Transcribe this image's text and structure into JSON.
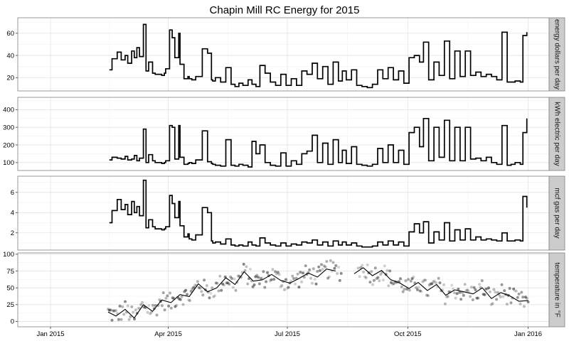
{
  "chart_data": {
    "type": "line",
    "title": "Chapin Mill RC Energy for 2015",
    "xlabel": "",
    "ylabel": "",
    "x_axis": {
      "ticks": [
        "2015-01-01",
        "2015-04-01",
        "2015-07-01",
        "2015-10-01",
        "2016-01-01"
      ],
      "tick_labels": [
        "Jan 2015",
        "Apr 2015",
        "Jul 2015",
        "Oct 2015",
        "Jan 2016"
      ],
      "range": [
        "2014-12-07",
        "2016-01-17"
      ]
    },
    "grid": true,
    "panels": [
      {
        "strip_label": "energy dollars per day",
        "type": "step",
        "ylim": [
          8,
          74
        ],
        "yticks": [
          20,
          40,
          60
        ],
        "series": [
          {
            "x": [
              "2015-02-15",
              "2015-02-17",
              "2015-02-21",
              "2015-02-24",
              "2015-02-27",
              "2015-03-01",
              "2015-03-04",
              "2015-03-06",
              "2015-03-08",
              "2015-03-10",
              "2015-03-13",
              "2015-03-15",
              "2015-03-17",
              "2015-03-20",
              "2015-03-22",
              "2015-03-27",
              "2015-03-29",
              "2015-03-30",
              "2015-04-02",
              "2015-04-04",
              "2015-04-06",
              "2015-04-09",
              "2015-04-10",
              "2015-04-13",
              "2015-04-16",
              "2015-04-17",
              "2015-04-19",
              "2015-04-22",
              "2015-04-27",
              "2015-05-01",
              "2015-05-04",
              "2015-05-05",
              "2015-05-07",
              "2015-05-11",
              "2015-05-15",
              "2015-05-19",
              "2015-05-22",
              "2015-05-25",
              "2015-05-28",
              "2015-06-01",
              "2015-06-04",
              "2015-06-07",
              "2015-06-10",
              "2015-06-14",
              "2015-06-18",
              "2015-06-22",
              "2015-06-26",
              "2015-06-30",
              "2015-07-04",
              "2015-07-08",
              "2015-07-12",
              "2015-07-16",
              "2015-07-20",
              "2015-07-24",
              "2015-07-28",
              "2015-08-01",
              "2015-08-05",
              "2015-08-09",
              "2015-08-12",
              "2015-08-15",
              "2015-08-19",
              "2015-08-23",
              "2015-08-27",
              "2015-08-31",
              "2015-09-04",
              "2015-09-08",
              "2015-09-12",
              "2015-09-16",
              "2015-09-20",
              "2015-09-24",
              "2015-09-28",
              "2015-10-02",
              "2015-10-06",
              "2015-10-10",
              "2015-10-13",
              "2015-10-17",
              "2015-10-21",
              "2015-10-25",
              "2015-10-29",
              "2015-11-02",
              "2015-11-06",
              "2015-11-10",
              "2015-11-14",
              "2015-11-18",
              "2015-11-22",
              "2015-11-26",
              "2015-11-30",
              "2015-12-04",
              "2015-12-08",
              "2015-12-12",
              "2015-12-16",
              "2015-12-19",
              "2015-12-22",
              "2015-12-26",
              "2015-12-28",
              "2015-12-31"
            ],
            "y": [
              27,
              37,
              43,
              36,
              40,
              33,
              44,
              38,
              47,
              39,
              68,
              26,
              34,
              24,
              23,
              22,
              24,
              28,
              63,
              56,
              38,
              60,
              32,
              19,
              21,
              19,
              18,
              21,
              46,
              42,
              18,
              17,
              20,
              16,
              29,
              14,
              12,
              15,
              13,
              18,
              14,
              12,
              31,
              24,
              16,
              13,
              23,
              13,
              19,
              13,
              26,
              23,
              33,
              19,
              30,
              14,
              34,
              17,
              26,
              18,
              27,
              13,
              12,
              11,
              14,
              27,
              19,
              29,
              18,
              26,
              15,
              38,
              40,
              34,
              52,
              18,
              34,
              22,
              53,
              19,
              44,
              21,
              44,
              22,
              25,
              21,
              23,
              21,
              18,
              61,
              16,
              16,
              17,
              16,
              58,
              61
            ]
          }
        ]
      },
      {
        "strip_label": "kWh electric per day",
        "type": "step",
        "ylim": [
          55,
          470
        ],
        "yticks": [
          100,
          200,
          300,
          400
        ],
        "series": [
          {
            "x": [
              "2015-02-15",
              "2015-02-17",
              "2015-02-21",
              "2015-02-24",
              "2015-02-27",
              "2015-03-01",
              "2015-03-04",
              "2015-03-06",
              "2015-03-08",
              "2015-03-10",
              "2015-03-13",
              "2015-03-15",
              "2015-03-17",
              "2015-03-20",
              "2015-03-22",
              "2015-03-27",
              "2015-03-29",
              "2015-03-30",
              "2015-04-02",
              "2015-04-04",
              "2015-04-06",
              "2015-04-09",
              "2015-04-10",
              "2015-04-13",
              "2015-04-16",
              "2015-04-17",
              "2015-04-19",
              "2015-04-22",
              "2015-04-27",
              "2015-05-01",
              "2015-05-04",
              "2015-05-05",
              "2015-05-07",
              "2015-05-11",
              "2015-05-15",
              "2015-05-19",
              "2015-05-22",
              "2015-05-25",
              "2015-05-28",
              "2015-06-01",
              "2015-06-04",
              "2015-06-07",
              "2015-06-10",
              "2015-06-14",
              "2015-06-18",
              "2015-06-22",
              "2015-06-26",
              "2015-06-30",
              "2015-07-04",
              "2015-07-08",
              "2015-07-12",
              "2015-07-16",
              "2015-07-20",
              "2015-07-24",
              "2015-07-28",
              "2015-08-01",
              "2015-08-05",
              "2015-08-09",
              "2015-08-12",
              "2015-08-15",
              "2015-08-19",
              "2015-08-23",
              "2015-08-27",
              "2015-08-31",
              "2015-09-04",
              "2015-09-08",
              "2015-09-12",
              "2015-09-16",
              "2015-09-20",
              "2015-09-24",
              "2015-09-28",
              "2015-10-02",
              "2015-10-06",
              "2015-10-10",
              "2015-10-13",
              "2015-10-17",
              "2015-10-21",
              "2015-10-25",
              "2015-10-29",
              "2015-11-02",
              "2015-11-06",
              "2015-11-10",
              "2015-11-14",
              "2015-11-18",
              "2015-11-22",
              "2015-11-26",
              "2015-11-30",
              "2015-12-04",
              "2015-12-08",
              "2015-12-12",
              "2015-12-16",
              "2015-12-19",
              "2015-12-22",
              "2015-12-26",
              "2015-12-28",
              "2015-12-31"
            ],
            "y": [
              115,
              130,
              125,
              120,
              135,
              115,
              120,
              140,
              110,
              125,
              290,
              100,
              145,
              110,
              100,
              95,
              100,
              110,
              310,
              300,
              120,
              310,
              130,
              90,
              95,
              100,
              95,
              115,
              280,
              105,
              95,
              90,
              85,
              80,
              230,
              85,
              80,
              90,
              85,
              75,
              220,
              150,
              200,
              100,
              85,
              80,
              155,
              80,
              110,
              90,
              150,
              165,
              255,
              100,
              210,
              90,
              230,
              100,
              170,
              95,
              190,
              90,
              85,
              80,
              90,
              180,
              100,
              200,
              100,
              170,
              90,
              270,
              300,
              190,
              350,
              110,
              300,
              130,
              340,
              110,
              300,
              110,
              300,
              120,
              125,
              110,
              130,
              100,
              90,
              310,
              85,
              90,
              100,
              90,
              270,
              350
            ]
          }
        ]
      },
      {
        "strip_label": "mcf gas per day",
        "type": "step",
        "ylim": [
          0.3,
          7.6
        ],
        "yticks": [
          2,
          4,
          6
        ],
        "series": [
          {
            "x": [
              "2015-02-15",
              "2015-02-17",
              "2015-02-21",
              "2015-02-24",
              "2015-02-27",
              "2015-03-01",
              "2015-03-04",
              "2015-03-06",
              "2015-03-08",
              "2015-03-10",
              "2015-03-13",
              "2015-03-15",
              "2015-03-17",
              "2015-03-20",
              "2015-03-22",
              "2015-03-27",
              "2015-03-29",
              "2015-03-30",
              "2015-04-02",
              "2015-04-04",
              "2015-04-06",
              "2015-04-09",
              "2015-04-10",
              "2015-04-13",
              "2015-04-16",
              "2015-04-17",
              "2015-04-19",
              "2015-04-22",
              "2015-04-27",
              "2015-05-01",
              "2015-05-04",
              "2015-05-05",
              "2015-05-07",
              "2015-05-11",
              "2015-05-15",
              "2015-05-19",
              "2015-05-22",
              "2015-05-25",
              "2015-05-28",
              "2015-06-01",
              "2015-06-04",
              "2015-06-07",
              "2015-06-10",
              "2015-06-14",
              "2015-06-18",
              "2015-06-22",
              "2015-06-26",
              "2015-06-30",
              "2015-07-04",
              "2015-07-08",
              "2015-07-12",
              "2015-07-16",
              "2015-07-20",
              "2015-07-24",
              "2015-07-28",
              "2015-08-01",
              "2015-08-05",
              "2015-08-09",
              "2015-08-12",
              "2015-08-15",
              "2015-08-19",
              "2015-08-23",
              "2015-08-27",
              "2015-08-31",
              "2015-09-04",
              "2015-09-08",
              "2015-09-12",
              "2015-09-16",
              "2015-09-20",
              "2015-09-24",
              "2015-09-28",
              "2015-10-02",
              "2015-10-06",
              "2015-10-10",
              "2015-10-13",
              "2015-10-17",
              "2015-10-21",
              "2015-10-25",
              "2015-10-29",
              "2015-11-02",
              "2015-11-06",
              "2015-11-10",
              "2015-11-14",
              "2015-11-18",
              "2015-11-22",
              "2015-11-26",
              "2015-11-30",
              "2015-12-04",
              "2015-12-08",
              "2015-12-12",
              "2015-12-16",
              "2015-12-19",
              "2015-12-22",
              "2015-12-26",
              "2015-12-28",
              "2015-12-31"
            ],
            "y": [
              3.0,
              4.2,
              5.3,
              4.3,
              4.8,
              3.8,
              5.1,
              4.0,
              4.6,
              3.7,
              7.2,
              2.5,
              3.3,
              2.6,
              2.4,
              2.3,
              2.4,
              2.6,
              5.7,
              4.9,
              3.5,
              5.1,
              2.7,
              1.6,
              1.9,
              1.4,
              1.3,
              1.8,
              4.5,
              4.0,
              1.2,
              1.0,
              1.1,
              0.9,
              1.4,
              0.8,
              0.7,
              0.8,
              0.7,
              1.1,
              0.8,
              0.7,
              1.5,
              1.0,
              0.8,
              0.7,
              1.0,
              0.7,
              0.9,
              0.8,
              1.1,
              1.0,
              1.3,
              0.8,
              1.1,
              0.7,
              1.2,
              0.8,
              1.1,
              0.8,
              1.0,
              0.7,
              0.6,
              0.6,
              0.7,
              1.1,
              0.8,
              1.2,
              0.8,
              1.1,
              0.7,
              2.1,
              2.9,
              2.0,
              3.1,
              1.0,
              2.1,
              1.3,
              3.0,
              1.2,
              2.3,
              1.3,
              2.4,
              1.3,
              1.6,
              1.3,
              1.4,
              1.3,
              1.2,
              2.0,
              1.2,
              1.2,
              1.3,
              1.2,
              5.6,
              4.5
            ]
          }
        ]
      },
      {
        "strip_label": "temperature in °F",
        "type": "scatter+smooth",
        "ylim": [
          -8,
          102
        ],
        "yticks": [
          0,
          25,
          50,
          75,
          100
        ],
        "series": [
          {
            "name": "",
            "kind": "smooth",
            "x": [
              "2015-02-14",
              "2015-02-20",
              "2015-02-27",
              "2015-03-06",
              "2015-03-13",
              "2015-03-20",
              "2015-03-27",
              "2015-04-03",
              "2015-04-10",
              "2015-04-17",
              "2015-04-24",
              "2015-05-01",
              "2015-05-08",
              "2015-05-15",
              "2015-05-22",
              "2015-05-29",
              "2015-06-05",
              "2015-06-12",
              "2015-06-19",
              "2015-06-26",
              "2015-07-03",
              "2015-07-10",
              "2015-07-17",
              "2015-07-24",
              "2015-07-31",
              "2015-08-07",
              "2015-08-14",
              "2015-08-21",
              "2015-08-28",
              "2015-09-04",
              "2015-09-11",
              "2015-09-18",
              "2015-09-25",
              "2015-10-02",
              "2015-10-09",
              "2015-10-16",
              "2015-10-23",
              "2015-10-30",
              "2015-11-06",
              "2015-11-13",
              "2015-11-20",
              "2015-11-27",
              "2015-12-04",
              "2015-12-11",
              "2015-12-18",
              "2015-12-25",
              "2016-01-01"
            ],
            "y": [
              14,
              8,
              18,
              5,
              25,
              15,
              32,
              28,
              40,
              37,
              56,
              44,
              50,
              65,
              55,
              74,
              60,
              62,
              70,
              61,
              57,
              64,
              72,
              66,
              78,
              75,
              null,
              71,
              80,
              68,
              76,
              62,
              57,
              49,
              58,
              46,
              55,
              39,
              47,
              44,
              41,
              50,
              34,
              43,
              38,
              30,
              31
            ]
          }
        ],
        "scatter_points": 320,
        "gap": [
          "2015-08-12",
          "2015-08-24"
        ]
      }
    ]
  }
}
